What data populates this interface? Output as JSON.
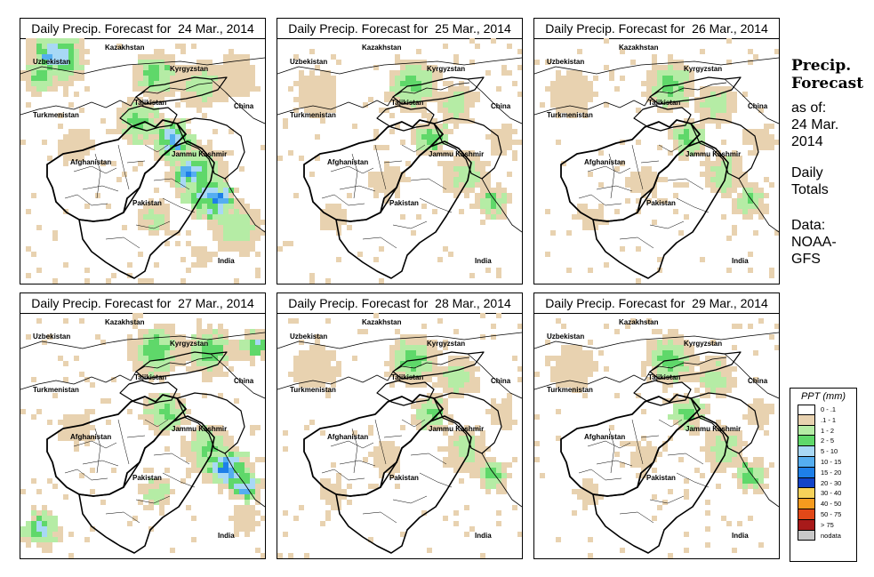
{
  "panel_title_prefix": "Daily Precip. Forecast for",
  "panels": [
    {
      "date": "24 Mar., 2014",
      "intensity": "heavy"
    },
    {
      "date": "25 Mar., 2014",
      "intensity": "light"
    },
    {
      "date": "26 Mar., 2014",
      "intensity": "light"
    },
    {
      "date": "27 Mar., 2014",
      "intensity": "moderate"
    },
    {
      "date": "28 Mar., 2014",
      "intensity": "light"
    },
    {
      "date": "29 Mar., 2014",
      "intensity": "light"
    }
  ],
  "map_labels": {
    "kazakhstan": "Kazakhstan",
    "uzbekistan": "Uzbekistan",
    "kyrgyzstan": "Kyrgyzstan",
    "tajikistan": "Tajikistan",
    "turkmenistan": "Turkmenistan",
    "china": "China",
    "jammu_kashmir": "Jammu Kashmir",
    "afghanistan": "Afghanistan",
    "pakistan": "Pakistan",
    "india": "India"
  },
  "sidebar": {
    "title_line1": "Precip.",
    "title_line2": "Forecast",
    "asof_line1": "as of:",
    "asof_line2": "24 Mar.",
    "asof_line3": "2014",
    "type_line1": "Daily",
    "type_line2": "Totals",
    "data_line1": "Data:",
    "data_line2": "NOAA-",
    "data_line3": "GFS"
  },
  "legend": {
    "title": "PPT (mm)",
    "items": [
      {
        "label": "0 - .1",
        "color": "#ffffff"
      },
      {
        "label": ".1 - 1",
        "color": "#e8d2b0"
      },
      {
        "label": "1 - 2",
        "color": "#b5eca5"
      },
      {
        "label": "2 - 5",
        "color": "#5fd86a"
      },
      {
        "label": "5 - 10",
        "color": "#a8d8f5"
      },
      {
        "label": "10 - 15",
        "color": "#55aef0"
      },
      {
        "label": "15 - 20",
        "color": "#1e7fe8"
      },
      {
        "label": "20 - 30",
        "color": "#1244c8"
      },
      {
        "label": "30 - 40",
        "color": "#f6d25a"
      },
      {
        "label": "40 - 50",
        "color": "#f59a1e"
      },
      {
        "label": "50 - 75",
        "color": "#e14818"
      },
      {
        "label": "> 75",
        "color": "#a81a1a"
      },
      {
        "label": "nodata",
        "color": "#c8c8c8"
      }
    ]
  }
}
